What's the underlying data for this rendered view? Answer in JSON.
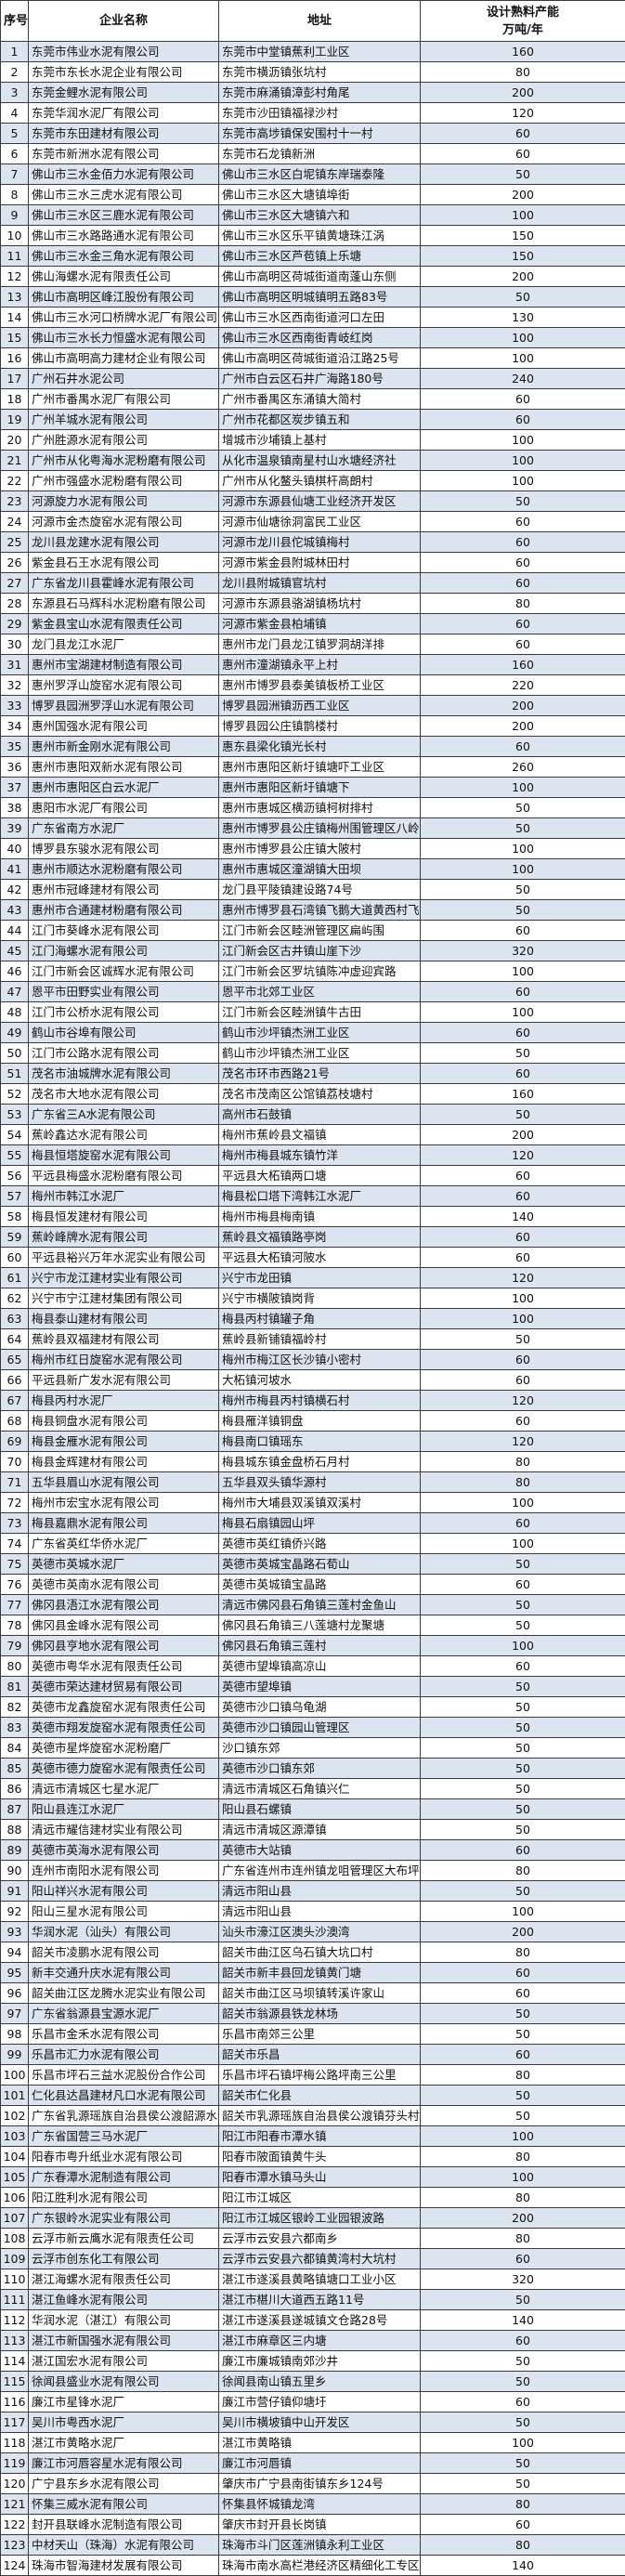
{
  "header": {
    "no": "序号",
    "name": "企业名称",
    "address": "地址",
    "capacity_line1": "设计熟料产能",
    "capacity_line2": "万吨/年"
  },
  "row_shade_color": "#dce4ef",
  "rows": [
    [
      "1",
      "东莞市伟业水泥有限公司",
      "东莞市中堂镇蕉利工业区",
      "160"
    ],
    [
      "2",
      "东莞市东长水泥企业有限公司",
      "东莞市横沥镇张坑村",
      "80"
    ],
    [
      "3",
      "东莞金鲤水泥有限公司",
      "东莞市麻涌镇漳彭村角尾",
      "200"
    ],
    [
      "4",
      "东莞华润水泥厂有限公司",
      "东莞市沙田镇福禄沙村",
      "120"
    ],
    [
      "5",
      "东莞市东田建材有限公司",
      "东莞市高埗镇保安围村十一村",
      "60"
    ],
    [
      "6",
      "东莞市新洲水泥有限公司",
      "东莞市石龙镇新洲",
      "60"
    ],
    [
      "7",
      "佛山市三水金佰力水泥有限公司",
      "佛山市三水区白坭镇东岸瑞泰隆",
      "50"
    ],
    [
      "8",
      "佛山市三水三虎水泥有限公司",
      "佛山市三水区大塘镇埠街",
      "200"
    ],
    [
      "9",
      "佛山市三水区三鹿水泥有限公司",
      "佛山市三水区大塘镇六和",
      "100"
    ],
    [
      "10",
      "佛山市三水路路通水泥有限公司",
      "佛山市三水区乐平镇黄塘珠江涡",
      "150"
    ],
    [
      "11",
      "佛山市三水金三角水泥有限公司",
      "佛山市三水区芦苞镇上乐塘",
      "150"
    ],
    [
      "12",
      "佛山海螺水泥有限责任公司",
      "佛山市高明区荷城街道南蓬山东侧",
      "200"
    ],
    [
      "13",
      "佛山市高明区峰江股份有限公司",
      "佛山市高明区明城镇明五路83号",
      "50"
    ],
    [
      "14",
      "佛山市三水河口桥牌水泥厂有限公司",
      "佛山市三水区西南街道河口左田",
      "130"
    ],
    [
      "15",
      "佛山市三水长力恒盛水泥有限公司",
      "佛山市三水区西南街青岐红岗",
      "100"
    ],
    [
      "16",
      "佛山市高明高力建材企业有限公司",
      "佛山市高明区荷城街道沿江路25号",
      "100"
    ],
    [
      "17",
      "广州石井水泥公司",
      "广州市白云区石井广海路180号",
      "240"
    ],
    [
      "18",
      "广州市番禺水泥厂有限公司",
      "广州市番禺区东涌镇大简村",
      "60"
    ],
    [
      "19",
      "广州羊城水泥有限公司",
      "广州市花都区炭步镇五和",
      "60"
    ],
    [
      "20",
      "广州胜源水泥有限公司",
      "增城市沙埔镇上基村",
      "100"
    ],
    [
      "21",
      "广州市从化粤海水泥粉磨有限公司",
      "从化市温泉镇南星村山水塘经济社",
      "100"
    ],
    [
      "22",
      "广州市强盛水泥粉磨有限公司",
      "广州市从化鳌头镇棋杆高朗村",
      "100"
    ],
    [
      "23",
      "河源旋力水泥有限公司",
      "河源市东源县仙塘工业经济开发区",
      "50"
    ],
    [
      "24",
      "河源市金杰旋窑水泥有限公司",
      "河源市仙塘徐洞富民工业区",
      "60"
    ],
    [
      "25",
      "龙川县龙建水泥有限公司",
      "河源市龙川县佗城镇梅村",
      "60"
    ],
    [
      "26",
      "紫金县石王水泥有限公司",
      "河源市紫金县附城林田村",
      "60"
    ],
    [
      "27",
      "广东省龙川县霍峰水泥有限公司",
      "龙川县附城镇官坑村",
      "60"
    ],
    [
      "28",
      "东源县石马辉科水泥粉磨有限公司",
      "河源市东源县骆湖镇杨坑村",
      "80"
    ],
    [
      "29",
      "紫金县宝山水泥有限责任公司",
      "河源市紫金县柏埔镇",
      "60"
    ],
    [
      "30",
      "龙门县龙江水泥厂",
      "惠州市龙门县龙江镇罗洞胡洋排",
      "60"
    ],
    [
      "31",
      "惠州市宝湖建材制造有限公司",
      "惠州市潼湖镇永平上村",
      "160"
    ],
    [
      "32",
      "惠州罗浮山旋窑水泥有限公司",
      "惠州市博罗县泰美镇板桥工业区",
      "220"
    ],
    [
      "33",
      "博罗县园洲罗浮山水泥有限公司",
      "博罗县园洲镇沥西工业区",
      "200"
    ],
    [
      "34",
      "惠州国强水泥有限公司",
      "博罗县园公庄镇鹊楼村",
      "200"
    ],
    [
      "35",
      "惠州市新金刚水泥有限公司",
      "惠东县梁化镇光长村",
      "60"
    ],
    [
      "36",
      "惠州市惠阳双新水泥有限公司",
      "惠州市惠阳区新圩镇塘吓工业区",
      "260"
    ],
    [
      "37",
      "惠州市惠阳区白云水泥厂",
      "惠州市惠阳区新圩镇塘下",
      "100"
    ],
    [
      "38",
      "惠阳市水泥厂有限公司",
      "惠州市惠城区横沥镇柯树排村",
      "50"
    ],
    [
      "39",
      "广东省南方水泥厂",
      "惠州市博罗县公庄镇梅州围管理区八岭",
      "50"
    ],
    [
      "40",
      "博罗县东骏水泥有限公司",
      "惠州市博罗县公庄镇大陂村",
      "100"
    ],
    [
      "41",
      "惠州市顺达水泥粉磨有限公司",
      "惠州市惠城区潼湖镇大田坝",
      "100"
    ],
    [
      "42",
      "惠州市冠峰建材有限公司",
      "龙门县平陵镇建设路74号",
      "50"
    ],
    [
      "43",
      "惠州市合通建材粉磨有限公司",
      "惠州市博罗县石湾镇飞鹅大道黄西村飞鹅岭",
      "50"
    ],
    [
      "44",
      "江门市葵峰水泥有限公司",
      "江门市新会区睦洲管理区扁屿围",
      "60"
    ],
    [
      "45",
      "江门海螺水泥有限公司",
      "江门新会区古井镇山崖下沙",
      "320"
    ],
    [
      "46",
      "江门市新会区诚辉水泥有限公司",
      "江门市新会区罗坑镇陈冲虚迎宾路",
      "100"
    ],
    [
      "47",
      "恩平市田野实业有限公司",
      "恩平市北郊工业区",
      "60"
    ],
    [
      "48",
      "江门市公桥水泥有限公司",
      "江门市新会区睦洲镇牛古田",
      "100"
    ],
    [
      "49",
      "鹤山市谷埠有限公司",
      "鹤山市沙坪镇杰洲工业区",
      "60"
    ],
    [
      "50",
      "江门市公路水泥有限公司",
      "鹤山市沙坪镇杰洲工业区",
      "50"
    ],
    [
      "51",
      "茂名市油城牌水泥有限公司",
      "茂名市环市西路21号",
      "60"
    ],
    [
      "52",
      "茂名市大地水泥有限公司",
      "茂名市茂南区公馆镇荔枝塘村",
      "160"
    ],
    [
      "53",
      "广东省三A水泥有限公司",
      "高州市石鼓镇",
      "50"
    ],
    [
      "54",
      "蕉岭鑫达水泥有限公司",
      "梅州市蕉岭县文福镇",
      "200"
    ],
    [
      "55",
      "梅县恒塔旋窑水泥有限公司",
      "梅州市梅县城东镇竹洋",
      "120"
    ],
    [
      "56",
      "平远县梅盛水泥粉磨有限公司",
      "平远县大柘镇两口塘",
      "60"
    ],
    [
      "57",
      "梅州市韩江水泥厂",
      "梅县松口塔下湾韩江水泥厂",
      "60"
    ],
    [
      "58",
      "梅县恒发建材有限公司",
      "梅州市梅县梅南镇",
      "140"
    ],
    [
      "59",
      "蕉岭峰牌水泥有限公司",
      "蕉岭县文福镇路亭岗",
      "60"
    ],
    [
      "60",
      "平远县裕兴万年水泥实业有限公司",
      "平远县大柘镇河陂水",
      "60"
    ],
    [
      "61",
      "兴宁市龙江建材实业有限公司",
      "兴宁市龙田镇",
      "120"
    ],
    [
      "62",
      "兴宁市宁江建材集团有限公司",
      "兴宁市横陂镇岗背",
      "100"
    ],
    [
      "63",
      "梅县泰山建材有限公司",
      "梅县丙村镇罐子角",
      "100"
    ],
    [
      "64",
      "蕉岭县双福建材有限公司",
      "蕉岭县新铺镇福岭村",
      "50"
    ],
    [
      "65",
      "梅州市红日旋窑水泥有限公司",
      "梅州市梅江区长沙镇小密村",
      "60"
    ],
    [
      "66",
      "平远县新广发水泥有限公司",
      "大柘镇河坡水",
      "60"
    ],
    [
      "67",
      "梅县丙村水泥厂",
      "梅州市梅县丙村镇横石村",
      "120"
    ],
    [
      "68",
      "梅县铜盘水泥有限公司",
      "梅县雁洋镇铜盘",
      "60"
    ],
    [
      "69",
      "梅县金雁水泥有限公司",
      "梅县南口镇瑶东",
      "120"
    ],
    [
      "70",
      "梅县金辉建材有限公司",
      "梅县城东镇金盘桥石月村",
      "80"
    ],
    [
      "71",
      "五华县眉山水泥有限公司",
      "五华县双头镇华源村",
      "80"
    ],
    [
      "72",
      "梅州市宏宝水泥有限公司",
      "梅州市大埔县双溪镇双溪村",
      "100"
    ],
    [
      "73",
      "梅县嘉鼎水泥有限公司",
      "梅县石扇镇园山坪",
      "60"
    ],
    [
      "74",
      "广东省英红华侨水泥厂",
      "英德市英红镇侨兴路",
      "100"
    ],
    [
      "75",
      "英德市英城水泥厂",
      "英德市英城宝晶路石荀山",
      "50"
    ],
    [
      "76",
      "英德市英南水泥有限公司",
      "英德市英城镇宝晶路",
      "60"
    ],
    [
      "77",
      "佛冈县浯江水泥有限公司",
      "清远市佛冈县石角镇三莲村金鱼山",
      "50"
    ],
    [
      "78",
      "佛冈县金峰水泥有限公司",
      "佛冈县石角镇三八莲塘村龙聚塘",
      "50"
    ],
    [
      "79",
      "佛冈县亨地水泥有限公司",
      "佛冈县石角镇三莲村",
      "100"
    ],
    [
      "80",
      "英德市粤华水泥有限责任公司",
      "英德市望埠镇高凉山",
      "60"
    ],
    [
      "81",
      "英德市荣达建材贸易有限公司",
      "英德市望埠镇",
      "50"
    ],
    [
      "82",
      "英德市龙鑫旋窑水泥有限责任公司",
      "英德市沙口镇乌龟湖",
      "50"
    ],
    [
      "83",
      "英德市翔发旋窑水泥有限责任公司",
      "英德市沙口镇园山管理区",
      "50"
    ],
    [
      "84",
      "英德市星烨旋窑水泥粉磨厂",
      "沙口镇东郊",
      "50"
    ],
    [
      "85",
      "英德市德力旋窑水泥有限责任公司",
      "英德市沙口镇东郊",
      "50"
    ],
    [
      "86",
      "清远市清城区七星水泥厂",
      "清远市清城区石角镇兴仁",
      "50"
    ],
    [
      "87",
      "阳山县连江水泥厂",
      "阳山县石螺镇",
      "50"
    ],
    [
      "88",
      "清远市耀信建材实业有限公司",
      "清远市清城区源潭镇",
      "50"
    ],
    [
      "89",
      "英德市英海水泥有限公司",
      "英德市大站镇",
      "60"
    ],
    [
      "90",
      "连州市南阳水泥有限公司",
      "广东省连州市连州镇龙咀管理区大布坪村",
      "80"
    ],
    [
      "91",
      "阳山祥兴水泥有限公司",
      "清远市阳山县",
      "50"
    ],
    [
      "92",
      "阳山三星水泥有限公司",
      "清远市阳山县",
      "100"
    ],
    [
      "93",
      "华润水泥（汕头）有限公司",
      "汕头市濠江区澳头沙澳湾",
      "200"
    ],
    [
      "94",
      "韶关市凌鹏水泥有限公司",
      "韶关市曲江区乌石镇大坑口村",
      "80"
    ],
    [
      "95",
      "新丰交通升庆水泥有限公司",
      "韶关市新丰县回龙镇黄门塘",
      "60"
    ],
    [
      "96",
      "韶关曲江区龙腾水泥实业有限公司",
      "韶关市曲江区马坝镇转溪许家山",
      "60"
    ],
    [
      "97",
      "广东省翁源县宝源水泥厂",
      "韶关市翁源县铁龙林场",
      "50"
    ],
    [
      "98",
      "乐昌市金禾水泥有限公司",
      "乐昌市南郊三公里",
      "50"
    ],
    [
      "99",
      "乐昌市汇力水泥有限公司",
      "韶关市乐昌",
      "60"
    ],
    [
      "100",
      "乐昌市坪石三益水泥股份合作公司",
      "乐昌市坪石镇坪梅公路坪南三公里",
      "80"
    ],
    [
      "101",
      "仁化县达昌建材凡口水泥有限公司",
      "韶关市仁化县",
      "50"
    ],
    [
      "102",
      "广东省乳源瑶族自治县侯公渡韶源水泥厂",
      "韶关市乳源瑶族自治县侯公渡镇芬头村",
      "50"
    ],
    [
      "103",
      "广东省国营三马水泥厂",
      "阳江市阳春市潭水镇",
      "100"
    ],
    [
      "104",
      "阳春市粤升纸业水泥有限公司",
      "阳春市陂面镇黄牛头",
      "80"
    ],
    [
      "105",
      "广东春潭水泥制造有限公司",
      "阳春市潭水镇马头山",
      "100"
    ],
    [
      "106",
      "阳江胜利水泥有限公司",
      "阳江市江城区",
      "80"
    ],
    [
      "107",
      "广东银岭水泥实业有限公司",
      "阳江市江城区银岭工业园银波路",
      "200"
    ],
    [
      "108",
      "云浮市新云鹰水泥有限责任公司",
      "云浮市云安县六都南乡",
      "80"
    ],
    [
      "109",
      "云浮市创东化工有限公司",
      "云浮市云安县六都镇黄湾村大坑村",
      "60"
    ],
    [
      "110",
      "湛江海螺水泥有限责任公司",
      "湛江市遂溪县黄略镇塘口工业小区",
      "320"
    ],
    [
      "111",
      "湛江鱼峰水泥有限公司",
      "湛江市椹川大道西五路11号",
      "50"
    ],
    [
      "112",
      "华润水泥（湛江）有限公司",
      "湛江市遂溪县遂城镇文仓路28号",
      "140"
    ],
    [
      "113",
      "湛江市新国强水泥有限公司",
      "湛江市麻章区三内塘",
      "60"
    ],
    [
      "114",
      "湛江国宏水泥有限公司",
      "廉江市廉城镇南郊沙井",
      "50"
    ],
    [
      "115",
      "徐闻县盛业水泥有限公司",
      "徐闻县南山镇五里乡",
      "50"
    ],
    [
      "116",
      "廉江市星锋水泥厂",
      "廉江市营仔镇仰塘圩",
      "60"
    ],
    [
      "117",
      "吴川市粤西水泥厂",
      "吴川市横坡镇中山开发区",
      "50"
    ],
    [
      "118",
      "湛江市黄略水泥厂",
      "湛江市黄略镇",
      "100"
    ],
    [
      "119",
      "廉江市河唇容星水泥有限公司",
      "廉江市河唇镇",
      "50"
    ],
    [
      "120",
      "广宁县东乡水泥有限公司",
      "肇庆市广宁县南街镇东乡124号",
      "50"
    ],
    [
      "121",
      "怀集三威水泥有限公司",
      "怀集县怀城镇龙湾",
      "80"
    ],
    [
      "122",
      "封开县联峰水泥制造有限公司",
      "肇庆市封开县长岗镇",
      "60"
    ],
    [
      "123",
      "中材天山（珠海）水泥有限公司",
      "珠海市斗门区莲洲镇永利工业区",
      "80"
    ],
    [
      "124",
      "珠海市智海建材发展有限公司",
      "珠海市南水高栏港经济区精细化工专区",
      "140"
    ]
  ]
}
